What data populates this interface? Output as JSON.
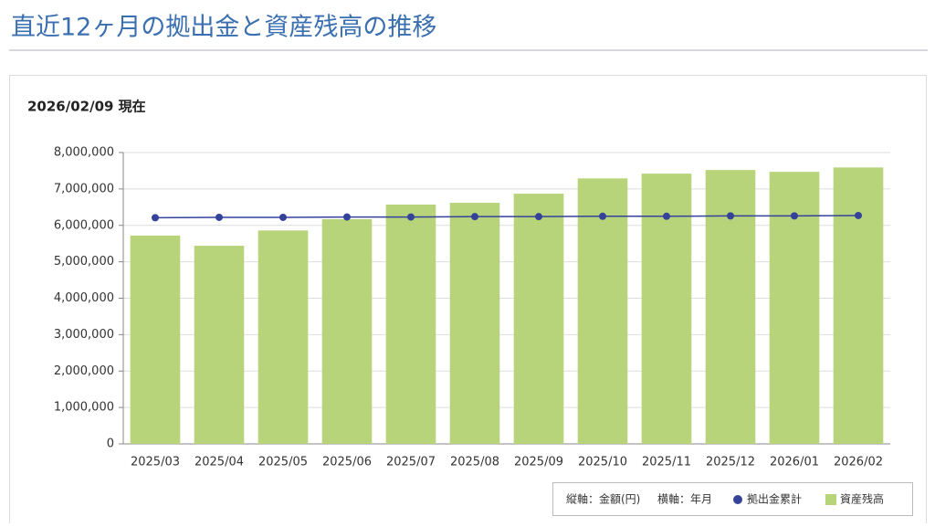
{
  "header": {
    "title": "直近12ヶ月の拠出金と資産残高の推移"
  },
  "as_of": "2026/02/09 現在",
  "chart_data": {
    "type": "bar",
    "y_label": "縦軸：金額(円)",
    "x_label": "横軸：年月",
    "categories": [
      "2025/03",
      "2025/04",
      "2025/05",
      "2025/06",
      "2025/07",
      "2025/08",
      "2025/09",
      "2025/10",
      "2025/11",
      "2025/12",
      "2026/01",
      "2026/02"
    ],
    "series": [
      {
        "name": "拠出金累計",
        "type": "line",
        "color": "#34429a",
        "values": [
          6210000,
          6220000,
          6220000,
          6230000,
          6230000,
          6240000,
          6240000,
          6250000,
          6250000,
          6260000,
          6260000,
          6270000
        ]
      },
      {
        "name": "資産残高",
        "type": "bar",
        "color": "#b8d47a",
        "values": [
          5720000,
          5440000,
          5860000,
          6170000,
          6570000,
          6620000,
          6870000,
          7290000,
          7420000,
          7520000,
          7470000,
          7590000
        ]
      }
    ],
    "ylim": [
      0,
      8000000
    ],
    "yticks": [
      0,
      {
        "value": 1000000,
        "label": "1,000,000"
      },
      {
        "value": 2000000,
        "label": "2,000,000"
      },
      {
        "value": 3000000,
        "label": "3,000,000"
      },
      {
        "value": 4000000,
        "label": "4,000,000"
      },
      {
        "value": 5000000,
        "label": "5,000,000"
      },
      {
        "value": 6000000,
        "label": "6,000,000"
      },
      {
        "value": 7000000,
        "label": "7,000,000"
      },
      {
        "value": 8000000,
        "label": "8,000,000"
      }
    ],
    "grid": true
  }
}
